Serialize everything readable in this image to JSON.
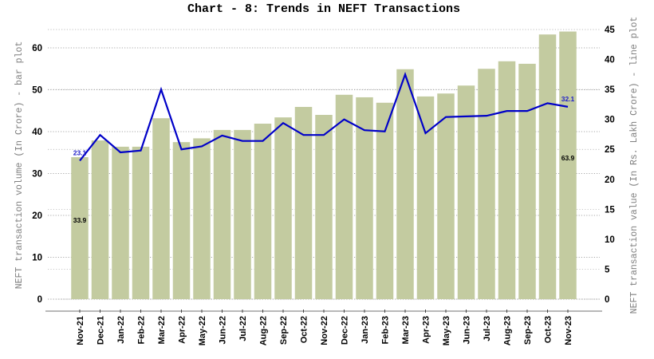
{
  "chart_data": {
    "type": "bar+line",
    "title": "Chart - 8: Trends in NEFT Transactions",
    "xlabel": "",
    "ylabel_left": "NEFT transaction volume (In Crore) - bar plot",
    "ylabel_right": "NEFT transaction value (In Rs. Lakh Crore) - line plot",
    "categories": [
      "Nov-21",
      "Dec-21",
      "Jan-22",
      "Feb-22",
      "Mar-22",
      "Apr-22",
      "May-22",
      "Jun-22",
      "Jul-22",
      "Aug-22",
      "Sep-22",
      "Oct-22",
      "Nov-22",
      "Dec-22",
      "Jan-23",
      "Feb-23",
      "Mar-23",
      "Apr-23",
      "May-23",
      "Jun-23",
      "Jul-23",
      "Aug-23",
      "Sep-23",
      "Oct-23",
      "Nov-23"
    ],
    "series": [
      {
        "name": "NEFT transaction volume (In Crore)",
        "type": "bar",
        "axis": "left",
        "color": "#c3cba0",
        "values": [
          33.9,
          37.9,
          36.4,
          36.4,
          43.2,
          37.5,
          38.4,
          40.4,
          40.4,
          41.9,
          43.4,
          45.9,
          44.0,
          48.8,
          48.2,
          46.9,
          54.9,
          48.4,
          49.1,
          51.0,
          55.0,
          56.8,
          56.2,
          63.2,
          63.9
        ]
      },
      {
        "name": "NEFT transaction value (In Rs. Lakh Crore)",
        "type": "line",
        "axis": "right",
        "color": "#0000c8",
        "values": [
          23.1,
          27.4,
          24.5,
          24.8,
          35.0,
          25.0,
          25.5,
          27.3,
          26.4,
          26.4,
          29.4,
          27.4,
          27.4,
          30.0,
          28.2,
          28.0,
          37.5,
          27.7,
          30.4,
          30.5,
          30.6,
          31.4,
          31.4,
          32.7,
          32.1
        ]
      }
    ],
    "ylim_left": [
      0,
      60
    ],
    "yticks_left": [
      0,
      10,
      20,
      30,
      40,
      50,
      60
    ],
    "ylim_right": [
      0,
      45
    ],
    "yticks_right": [
      0,
      5,
      10,
      15,
      20,
      25,
      30,
      35,
      40,
      45
    ],
    "annotations": [
      {
        "text": "33.9",
        "series": "bar",
        "index": 0
      },
      {
        "text": "23.1",
        "series": "line",
        "index": 0
      },
      {
        "text": "63.9",
        "series": "bar",
        "index": 24
      },
      {
        "text": "32.1",
        "series": "line",
        "index": 24
      }
    ],
    "grid": {
      "horizontal": true,
      "style": "dotted"
    },
    "legend": null
  }
}
